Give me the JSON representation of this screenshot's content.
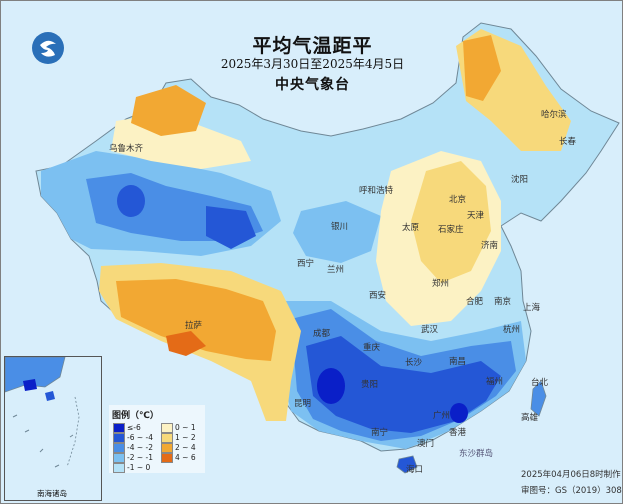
{
  "title": "平均气温距平",
  "subtitle": "2025年3月30日至2025年4月5日",
  "publisher": "中央气象台",
  "legend": {
    "title": "图例（℃）",
    "items": [
      {
        "label": "≤-6",
        "color": "#0a1fc8"
      },
      {
        "label": "-6 ~ -4",
        "color": "#2457d6"
      },
      {
        "label": "-4 ~ -2",
        "color": "#4a8ee6"
      },
      {
        "label": "-2 ~ -1",
        "color": "#7cc0f1"
      },
      {
        "label": "-1 ~ 0",
        "color": "#b5e2f7"
      },
      {
        "label": "0 ~ 1",
        "color": "#fcf2c4"
      },
      {
        "label": "1 ~ 2",
        "color": "#f7d97b"
      },
      {
        "label": "2 ~ 4",
        "color": "#f2a833"
      },
      {
        "label": "4 ~ 6",
        "color": "#e46b17"
      }
    ]
  },
  "cities": [
    {
      "name": "乌鲁木齐"
    },
    {
      "name": "哈尔滨"
    },
    {
      "name": "长春"
    },
    {
      "name": "沈阳"
    },
    {
      "name": "呼和浩特"
    },
    {
      "name": "北京"
    },
    {
      "name": "天津"
    },
    {
      "name": "石家庄"
    },
    {
      "name": "太原"
    },
    {
      "name": "银川"
    },
    {
      "name": "济南"
    },
    {
      "name": "西宁"
    },
    {
      "name": "兰州"
    },
    {
      "name": "郑州"
    },
    {
      "name": "西安"
    },
    {
      "name": "合肥"
    },
    {
      "name": "南京"
    },
    {
      "name": "上海"
    },
    {
      "name": "拉萨"
    },
    {
      "name": "成都"
    },
    {
      "name": "武汉"
    },
    {
      "name": "杭州"
    },
    {
      "name": "重庆"
    },
    {
      "name": "长沙"
    },
    {
      "name": "南昌"
    },
    {
      "name": "福州"
    },
    {
      "name": "贵阳"
    },
    {
      "name": "台北"
    },
    {
      "name": "昆明"
    },
    {
      "name": "南宁"
    },
    {
      "name": "广州"
    },
    {
      "name": "香港"
    },
    {
      "name": "澳门"
    },
    {
      "name": "海口"
    }
  ],
  "place_labels": {
    "kaohsiung": "高雄",
    "south_sea_islands": "南海诸岛",
    "dongsha": "东沙群岛"
  },
  "footer": {
    "made": "2025年04月06日8时制作",
    "approval": "审图号：GS（2019）3082号"
  }
}
